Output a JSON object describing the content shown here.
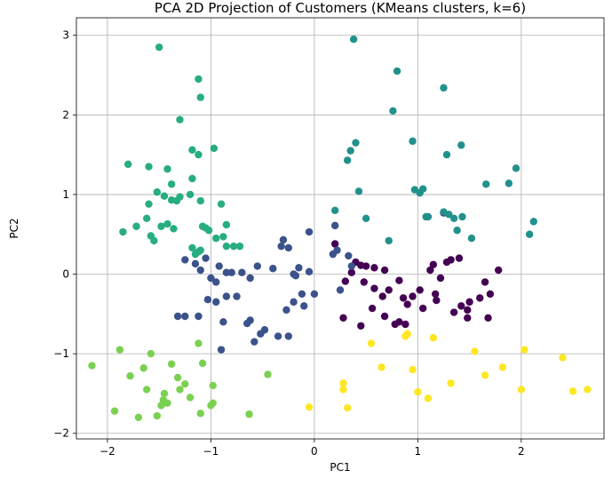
{
  "chart_data": {
    "type": "scatter",
    "title": "PCA 2D Projection of Customers (KMeans clusters, k=6)",
    "xlabel": "PC1",
    "ylabel": "PC2",
    "xlim": [
      -2.3,
      2.8
    ],
    "ylim": [
      -2.07,
      3.22
    ],
    "xticks": [
      -2,
      -1,
      0,
      1,
      2
    ],
    "yticks": [
      -2,
      -1,
      0,
      1,
      2,
      3
    ],
    "grid": true,
    "colormap": "viridis",
    "series": [
      {
        "color": "#440154",
        "points": [
          [
            0.2,
            0.38
          ],
          [
            0.36,
            0.02
          ],
          [
            0.45,
            0.11
          ],
          [
            0.5,
            0.1
          ],
          [
            0.4,
            0.15
          ],
          [
            0.3,
            -0.09
          ],
          [
            0.48,
            -0.1
          ],
          [
            0.58,
            0.08
          ],
          [
            0.68,
            0.05
          ],
          [
            0.82,
            -0.08
          ],
          [
            0.58,
            -0.18
          ],
          [
            0.66,
            -0.28
          ],
          [
            0.72,
            -0.2
          ],
          [
            0.86,
            -0.3
          ],
          [
            0.56,
            -0.43
          ],
          [
            0.68,
            -0.53
          ],
          [
            0.78,
            -0.63
          ],
          [
            0.82,
            -0.6
          ],
          [
            0.88,
            -0.63
          ],
          [
            0.95,
            -0.28
          ],
          [
            1.02,
            -0.2
          ],
          [
            1.05,
            -0.43
          ],
          [
            1.17,
            -0.25
          ],
          [
            1.15,
            0.12
          ],
          [
            1.12,
            0.05
          ],
          [
            1.28,
            0.15
          ],
          [
            1.32,
            0.18
          ],
          [
            1.4,
            0.2
          ],
          [
            1.22,
            -0.05
          ],
          [
            1.18,
            -0.33
          ],
          [
            1.35,
            -0.48
          ],
          [
            1.42,
            -0.4
          ],
          [
            1.5,
            -0.35
          ],
          [
            1.6,
            -0.3
          ],
          [
            1.65,
            -0.1
          ],
          [
            1.7,
            -0.25
          ],
          [
            1.68,
            -0.55
          ],
          [
            1.48,
            -0.55
          ],
          [
            1.25,
            0.77
          ],
          [
            1.78,
            0.05
          ],
          [
            1.48,
            -0.45
          ],
          [
            0.9,
            -0.38
          ],
          [
            0.28,
            -0.55
          ],
          [
            0.45,
            -0.65
          ]
        ]
      },
      {
        "color": "#3b528b",
        "points": [
          [
            -1.25,
            0.18
          ],
          [
            -1.15,
            0.13
          ],
          [
            -1.05,
            0.2
          ],
          [
            -0.92,
            0.1
          ],
          [
            -1.1,
            0.05
          ],
          [
            -0.85,
            0.02
          ],
          [
            -1.0,
            -0.05
          ],
          [
            -0.95,
            -0.1
          ],
          [
            -0.8,
            0.02
          ],
          [
            -0.7,
            0.02
          ],
          [
            -0.62,
            -0.05
          ],
          [
            -0.55,
            0.1
          ],
          [
            -0.4,
            0.07
          ],
          [
            -0.2,
            0.0
          ],
          [
            -0.18,
            -0.02
          ],
          [
            -0.15,
            0.08
          ],
          [
            -0.05,
            0.03
          ],
          [
            -0.32,
            0.35
          ],
          [
            -0.3,
            0.43
          ],
          [
            -0.25,
            0.33
          ],
          [
            -0.05,
            0.53
          ],
          [
            0.2,
            0.61
          ],
          [
            0.22,
            0.3
          ],
          [
            0.18,
            0.25
          ],
          [
            0.33,
            0.23
          ],
          [
            0.36,
            0.1
          ],
          [
            -0.12,
            -0.25
          ],
          [
            -0.2,
            -0.35
          ],
          [
            -0.1,
            -0.4
          ],
          [
            -0.27,
            -0.45
          ],
          [
            -0.85,
            -0.28
          ],
          [
            -0.75,
            -0.28
          ],
          [
            -0.62,
            -0.58
          ],
          [
            -0.65,
            -0.62
          ],
          [
            -0.52,
            -0.75
          ],
          [
            -0.48,
            -0.7
          ],
          [
            -0.35,
            -0.78
          ],
          [
            -0.25,
            -0.78
          ],
          [
            -1.32,
            -0.53
          ],
          [
            -1.25,
            -0.53
          ],
          [
            -1.12,
            -0.53
          ],
          [
            -0.95,
            -0.35
          ],
          [
            -0.88,
            -0.6
          ],
          [
            -0.9,
            -0.95
          ],
          [
            -0.58,
            -0.85
          ],
          [
            0.0,
            -0.25
          ],
          [
            0.25,
            -0.2
          ],
          [
            -1.03,
            -0.32
          ]
        ]
      },
      {
        "color": "#21918c",
        "points": [
          [
            0.38,
            2.95
          ],
          [
            0.8,
            2.55
          ],
          [
            1.25,
            2.34
          ],
          [
            0.76,
            2.05
          ],
          [
            0.32,
            1.43
          ],
          [
            0.35,
            1.55
          ],
          [
            0.4,
            1.65
          ],
          [
            0.95,
            1.67
          ],
          [
            1.28,
            1.5
          ],
          [
            1.42,
            1.62
          ],
          [
            0.43,
            1.04
          ],
          [
            0.97,
            1.06
          ],
          [
            1.02,
            1.02
          ],
          [
            1.05,
            1.07
          ],
          [
            1.66,
            1.13
          ],
          [
            1.95,
            1.33
          ],
          [
            1.88,
            1.14
          ],
          [
            0.2,
            0.8
          ],
          [
            0.5,
            0.7
          ],
          [
            0.72,
            0.42
          ],
          [
            1.08,
            0.72
          ],
          [
            1.1,
            0.72
          ],
          [
            1.25,
            0.78
          ],
          [
            1.38,
            0.55
          ],
          [
            1.52,
            0.45
          ],
          [
            2.08,
            0.5
          ],
          [
            2.12,
            0.66
          ],
          [
            1.3,
            0.75
          ],
          [
            1.35,
            0.7
          ],
          [
            1.43,
            0.72
          ]
        ]
      },
      {
        "color": "#27ad81",
        "points": [
          [
            -1.5,
            2.85
          ],
          [
            -1.12,
            2.45
          ],
          [
            -1.1,
            2.22
          ],
          [
            -1.3,
            1.94
          ],
          [
            -1.18,
            1.56
          ],
          [
            -1.12,
            1.5
          ],
          [
            -0.97,
            1.58
          ],
          [
            -1.8,
            1.38
          ],
          [
            -1.6,
            1.35
          ],
          [
            -1.42,
            1.32
          ],
          [
            -1.38,
            1.13
          ],
          [
            -1.18,
            1.2
          ],
          [
            -1.52,
            1.03
          ],
          [
            -1.45,
            0.98
          ],
          [
            -1.3,
            0.97
          ],
          [
            -1.2,
            1.0
          ],
          [
            -1.1,
            0.92
          ],
          [
            -1.6,
            0.88
          ],
          [
            -1.38,
            0.93
          ],
          [
            -1.33,
            0.92
          ],
          [
            -1.85,
            0.53
          ],
          [
            -1.72,
            0.6
          ],
          [
            -1.62,
            0.7
          ],
          [
            -1.58,
            0.48
          ],
          [
            -1.55,
            0.42
          ],
          [
            -1.48,
            0.6
          ],
          [
            -1.42,
            0.63
          ],
          [
            -1.36,
            0.57
          ],
          [
            -1.18,
            0.33
          ],
          [
            -1.15,
            0.25
          ],
          [
            -1.1,
            0.3
          ],
          [
            -1.05,
            0.58
          ],
          [
            -1.02,
            0.55
          ],
          [
            -0.95,
            0.45
          ],
          [
            -0.9,
            0.88
          ],
          [
            -0.88,
            0.47
          ],
          [
            -0.85,
            0.62
          ],
          [
            -0.85,
            0.35
          ],
          [
            -0.78,
            0.35
          ],
          [
            -0.72,
            0.35
          ],
          [
            -1.12,
            0.28
          ],
          [
            -1.08,
            0.6
          ]
        ]
      },
      {
        "color": "#7ad151",
        "points": [
          [
            -2.15,
            -1.15
          ],
          [
            -1.93,
            -1.72
          ],
          [
            -1.88,
            -0.95
          ],
          [
            -1.78,
            -1.28
          ],
          [
            -1.7,
            -1.8
          ],
          [
            -1.65,
            -1.18
          ],
          [
            -1.62,
            -1.45
          ],
          [
            -1.58,
            -1.0
          ],
          [
            -1.52,
            -1.78
          ],
          [
            -1.48,
            -1.65
          ],
          [
            -1.46,
            -1.58
          ],
          [
            -1.45,
            -1.5
          ],
          [
            -1.42,
            -1.62
          ],
          [
            -1.38,
            -1.13
          ],
          [
            -1.32,
            -1.3
          ],
          [
            -1.3,
            -1.45
          ],
          [
            -1.25,
            -1.38
          ],
          [
            -1.2,
            -1.55
          ],
          [
            -1.12,
            -0.87
          ],
          [
            -1.1,
            -1.75
          ],
          [
            -1.08,
            -1.12
          ],
          [
            -1.0,
            -1.65
          ],
          [
            -0.98,
            -1.4
          ],
          [
            -0.98,
            -1.62
          ],
          [
            -0.63,
            -1.76
          ],
          [
            -0.45,
            -1.26
          ]
        ]
      },
      {
        "color": "#fde725",
        "points": [
          [
            -0.05,
            -1.67
          ],
          [
            0.28,
            -1.37
          ],
          [
            0.28,
            -1.45
          ],
          [
            0.32,
            -1.68
          ],
          [
            0.55,
            -0.87
          ],
          [
            0.65,
            -1.17
          ],
          [
            0.88,
            -0.78
          ],
          [
            0.9,
            -0.75
          ],
          [
            0.95,
            -1.2
          ],
          [
            1.0,
            -1.48
          ],
          [
            1.1,
            -1.56
          ],
          [
            1.15,
            -0.8
          ],
          [
            1.32,
            -1.37
          ],
          [
            1.55,
            -0.97
          ],
          [
            1.65,
            -1.27
          ],
          [
            1.82,
            -1.17
          ],
          [
            2.0,
            -1.45
          ],
          [
            2.03,
            -0.95
          ],
          [
            2.4,
            -1.05
          ],
          [
            2.5,
            -1.47
          ],
          [
            2.64,
            -1.45
          ]
        ]
      }
    ]
  }
}
